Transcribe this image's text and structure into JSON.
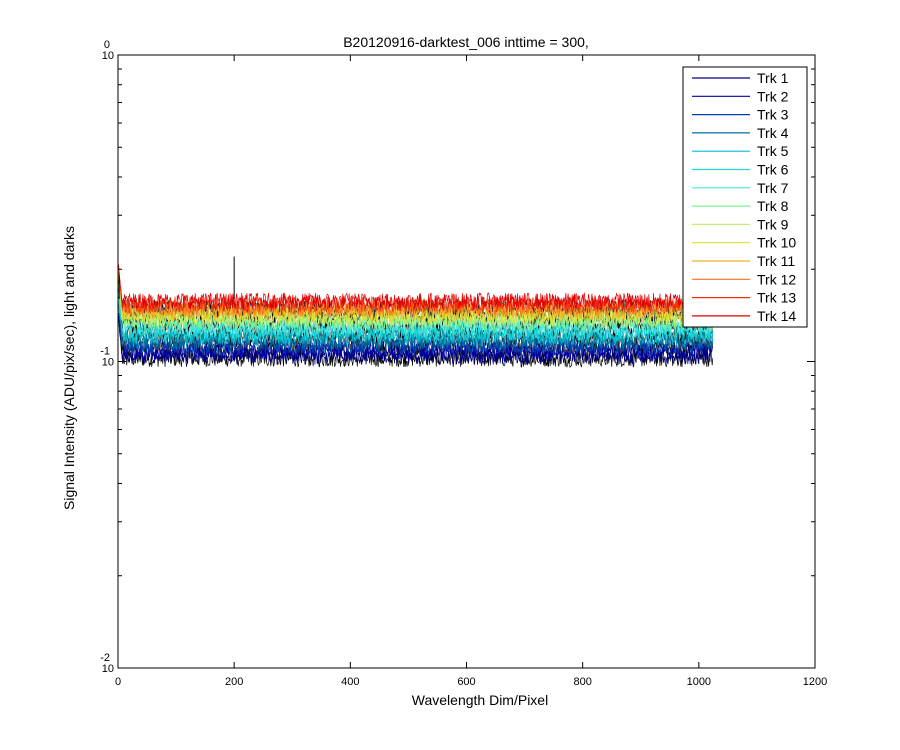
{
  "chart_data": {
    "type": "line",
    "title": "B20120916-darktest_006 inttime = 300,",
    "xlabel": "Wavelength Dim/Pixel",
    "ylabel": "Signal Intensity (ADU/pix/sec), light and darks",
    "xlim": [
      0,
      1200
    ],
    "ylim": [
      0.01,
      1
    ],
    "yscale": "log",
    "xticks": [
      0,
      200,
      400,
      600,
      800,
      1000,
      1200
    ],
    "xtick_labels": [
      "0",
      "200",
      "400",
      "600",
      "800",
      "1000",
      "1200"
    ],
    "yticks": [
      {
        "value": 1,
        "base": "10",
        "exp": "0"
      },
      {
        "value": 0.1,
        "base": "10",
        "exp": "-1"
      },
      {
        "value": 0.01,
        "base": "10",
        "exp": "-2"
      }
    ],
    "grid": false,
    "legend_position": "top-right",
    "pixel_range": [
      1,
      1024
    ],
    "series": [
      {
        "name": "Trk 1",
        "color": "#000080",
        "level": 0.104,
        "noise": 0.06
      },
      {
        "name": "Trk 2",
        "color": "#0000a8",
        "level": 0.108,
        "noise": 0.06
      },
      {
        "name": "Trk 3",
        "color": "#0040b0",
        "level": 0.112,
        "noise": 0.06
      },
      {
        "name": "Trk 4",
        "color": "#0070a0",
        "level": 0.117,
        "noise": 0.06
      },
      {
        "name": "Trk 5",
        "color": "#00c0d0",
        "level": 0.121,
        "noise": 0.06
      },
      {
        "name": "Trk 6",
        "color": "#20d8d8",
        "level": 0.125,
        "noise": 0.06
      },
      {
        "name": "Trk 7",
        "color": "#40e8e0",
        "level": 0.13,
        "noise": 0.06
      },
      {
        "name": "Trk 8",
        "color": "#80f090",
        "level": 0.134,
        "noise": 0.06
      },
      {
        "name": "Trk 9",
        "color": "#c0f070",
        "level": 0.138,
        "noise": 0.06
      },
      {
        "name": "Trk 10",
        "color": "#e0e030",
        "level": 0.142,
        "noise": 0.06
      },
      {
        "name": "Trk 11",
        "color": "#f0b020",
        "level": 0.146,
        "noise": 0.06
      },
      {
        "name": "Trk 12",
        "color": "#ff7020",
        "level": 0.15,
        "noise": 0.06
      },
      {
        "name": "Trk 13",
        "color": "#f03010",
        "level": 0.154,
        "noise": 0.06
      },
      {
        "name": "Trk 14",
        "color": "#e00000",
        "level": 0.158,
        "noise": 0.06
      }
    ],
    "dark_traces": {
      "levels": [
        0.102,
        0.11,
        0.118,
        0.126,
        0.134,
        0.142,
        0.15
      ],
      "color": "#000000"
    },
    "annotations": [
      {
        "x": 200,
        "y": 0.22,
        "note": "spike"
      },
      {
        "x": 2,
        "y": 0.19,
        "note": "edge spike"
      }
    ]
  }
}
